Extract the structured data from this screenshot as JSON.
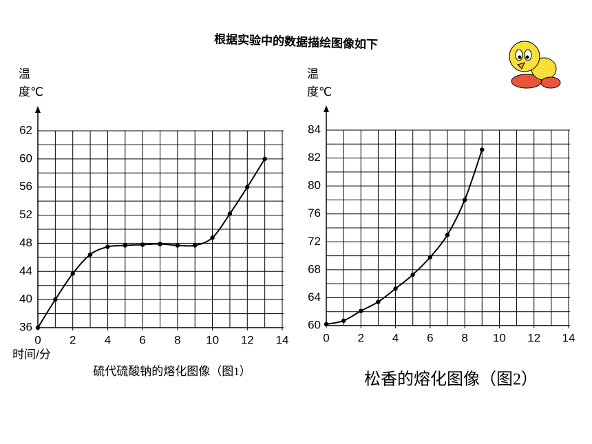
{
  "title": "根据实验中的数据描绘图像如下",
  "chart_data": [
    {
      "type": "line",
      "caption": "硫代硫酸钠的熔化图像（图1）",
      "y_label": "温度℃",
      "x_label": "时间/分",
      "x": [
        0,
        1,
        2,
        3,
        4,
        5,
        6,
        7,
        8,
        9,
        10,
        11,
        12,
        13
      ],
      "values": [
        36,
        40,
        43.7,
        46.4,
        47.5,
        47.7,
        47.8,
        47.9,
        47.7,
        47.7,
        48.8,
        52.2,
        56,
        60
      ],
      "color": "#000000",
      "xlim": [
        0,
        14
      ],
      "xticks": [
        0,
        2,
        4,
        6,
        8,
        10,
        12,
        14
      ],
      "ylim": [
        36,
        62
      ],
      "yticks": [
        36,
        40,
        44,
        48,
        52,
        56,
        60,
        62
      ],
      "grid": true
    },
    {
      "type": "line",
      "caption": "松香的熔化图像（图2）",
      "y_label": "温度℃",
      "x": [
        0,
        1,
        2,
        3,
        4,
        5,
        6,
        7,
        8,
        9
      ],
      "values": [
        60.2,
        60.7,
        62.1,
        63.4,
        65.3,
        67.3,
        69.8,
        73,
        78,
        82.6
      ],
      "color": "#000000",
      "xlim": [
        0,
        14
      ],
      "xticks": [
        0,
        2,
        4,
        6,
        8,
        10,
        12,
        14
      ],
      "ylim": [
        60,
        84
      ],
      "yticks": [
        60,
        64,
        68,
        72,
        76,
        80,
        82,
        84
      ],
      "grid": true
    }
  ]
}
